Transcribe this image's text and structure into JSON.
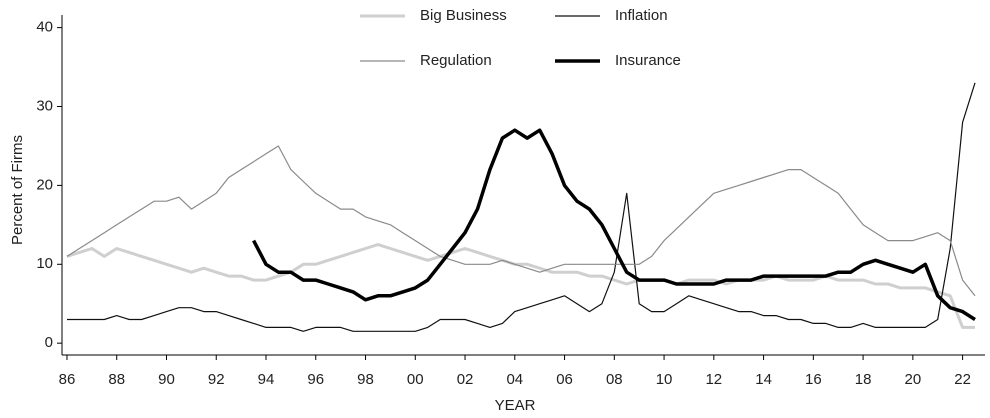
{
  "chart_data": {
    "type": "line",
    "ylabel": "Percent of Firms",
    "xlabel": "YEAR",
    "x": [
      1986,
      1986.5,
      1987,
      1987.5,
      1988,
      1988.5,
      1989,
      1989.5,
      1990,
      1990.5,
      1991,
      1991.5,
      1992,
      1992.5,
      1993,
      1993.5,
      1994,
      1994.5,
      1995,
      1995.5,
      1996,
      1996.5,
      1997,
      1997.5,
      1998,
      1998.5,
      1999,
      1999.5,
      2000,
      2000.5,
      2001,
      2001.5,
      2002,
      2002.5,
      2003,
      2003.5,
      2004,
      2004.5,
      2005,
      2005.5,
      2006,
      2006.5,
      2007,
      2007.5,
      2008,
      2008.5,
      2009,
      2009.5,
      2010,
      2010.5,
      2011,
      2011.5,
      2012,
      2012.5,
      2013,
      2013.5,
      2014,
      2014.5,
      2015,
      2015.5,
      2016,
      2016.5,
      2017,
      2017.5,
      2018,
      2018.5,
      2019,
      2019.5,
      2020,
      2020.5,
      2021,
      2021.5,
      2022,
      2022.5
    ],
    "series": [
      {
        "name": "Big Business",
        "color": "#cfcfcf",
        "linewidth": 3,
        "values": [
          11,
          11.5,
          12,
          11,
          12,
          11.5,
          11,
          10.5,
          10,
          9.5,
          9,
          9.5,
          9,
          8.5,
          8.5,
          8,
          8,
          8.5,
          9,
          10,
          10,
          10.5,
          11,
          11.5,
          12,
          12.5,
          12,
          11.5,
          11,
          10.5,
          11,
          11.5,
          12,
          11.5,
          11,
          10.5,
          10,
          10,
          9.5,
          9,
          9,
          9,
          8.5,
          8.5,
          8,
          7.5,
          8,
          8,
          8,
          7.5,
          8,
          8,
          8,
          7.5,
          8,
          8,
          8,
          8.5,
          8,
          8,
          8,
          8.5,
          8,
          8,
          8,
          7.5,
          7.5,
          7,
          7,
          7,
          6.5,
          6,
          2,
          2
        ]
      },
      {
        "name": "Inflation",
        "color": "#111111",
        "linewidth": 1.2,
        "values": [
          3,
          3,
          3,
          3,
          3.5,
          3,
          3,
          3.5,
          4,
          4.5,
          4.5,
          4,
          4,
          3.5,
          3,
          2.5,
          2,
          2,
          2,
          1.5,
          2,
          2,
          2,
          1.5,
          1.5,
          1.5,
          1.5,
          1.5,
          1.5,
          2,
          3,
          3,
          3,
          2.5,
          2,
          2.5,
          4,
          4.5,
          5,
          5.5,
          6,
          5,
          4,
          5,
          9,
          19,
          5,
          4,
          4,
          5,
          6,
          5.5,
          5,
          4.5,
          4,
          4,
          3.5,
          3.5,
          3,
          3,
          2.5,
          2.5,
          2,
          2,
          2.5,
          2,
          2,
          2,
          2,
          2,
          3,
          12,
          28,
          33
        ]
      },
      {
        "name": "Regulation",
        "color": "#8a8a8a",
        "linewidth": 1.2,
        "values": [
          11,
          12,
          13,
          14,
          15,
          16,
          17,
          18,
          18,
          18.5,
          17,
          18,
          19,
          21,
          22,
          23,
          24,
          25,
          22,
          20.5,
          19,
          18,
          17,
          17,
          16,
          15.5,
          15,
          14,
          13,
          12,
          11,
          10.5,
          10,
          10,
          10,
          10.5,
          10,
          9.5,
          9,
          9.5,
          10,
          10,
          10,
          10,
          10,
          10,
          10,
          11,
          13,
          14.5,
          16,
          17.5,
          19,
          19.5,
          20,
          20.5,
          21,
          21.5,
          22,
          22,
          21,
          20,
          19,
          17,
          15,
          14,
          13,
          13,
          13,
          13.5,
          14,
          13,
          8,
          6
        ]
      },
      {
        "name": "Insurance",
        "color": "#000000",
        "linewidth": 3.5,
        "values": [
          null,
          null,
          null,
          null,
          null,
          null,
          null,
          null,
          null,
          null,
          null,
          null,
          null,
          null,
          null,
          13,
          10,
          9,
          9,
          8,
          8,
          7.5,
          7,
          6.5,
          5.5,
          6,
          6,
          6.5,
          7,
          8,
          10,
          12,
          14,
          17,
          22,
          26,
          27,
          26,
          27,
          24,
          20,
          18,
          17,
          15,
          12,
          9,
          8,
          8,
          8,
          7.5,
          7.5,
          7.5,
          7.5,
          8,
          8,
          8,
          8.5,
          8.5,
          8.5,
          8.5,
          8.5,
          8.5,
          9,
          9,
          10,
          10.5,
          10,
          9.5,
          9,
          10,
          6,
          4.5,
          4,
          3
        ]
      }
    ],
    "xlim": [
      1985.8,
      2022.9
    ],
    "xticks": [
      {
        "value": 1986,
        "label": "86"
      },
      {
        "value": 1988,
        "label": "88"
      },
      {
        "value": 1990,
        "label": "90"
      },
      {
        "value": 1992,
        "label": "92"
      },
      {
        "value": 1994,
        "label": "94"
      },
      {
        "value": 1996,
        "label": "96"
      },
      {
        "value": 1998,
        "label": "98"
      },
      {
        "value": 2000,
        "label": "00"
      },
      {
        "value": 2002,
        "label": "02"
      },
      {
        "value": 2004,
        "label": "04"
      },
      {
        "value": 2006,
        "label": "06"
      },
      {
        "value": 2008,
        "label": "08"
      },
      {
        "value": 2010,
        "label": "10"
      },
      {
        "value": 2012,
        "label": "12"
      },
      {
        "value": 2014,
        "label": "14"
      },
      {
        "value": 2016,
        "label": "16"
      },
      {
        "value": 2018,
        "label": "18"
      },
      {
        "value": 2020,
        "label": "20"
      },
      {
        "value": 2022,
        "label": "22"
      }
    ],
    "ylim": [
      -1.5,
      41.6
    ],
    "yticks": [
      0,
      10,
      20,
      30,
      40
    ]
  }
}
